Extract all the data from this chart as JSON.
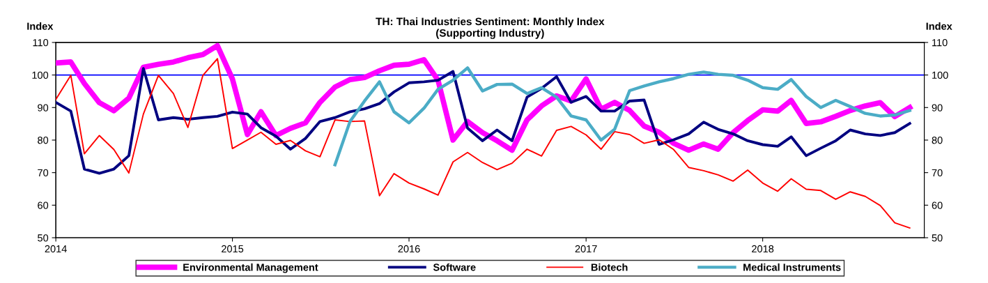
{
  "chart_data": {
    "type": "line",
    "title": "TH: Thai Industries Sentiment: Monthly Index\n(Supporting Industry)",
    "ylabel": "Index",
    "y2label": "Index",
    "x": [
      "2014-01",
      "2014-02",
      "2014-03",
      "2014-04",
      "2014-05",
      "2014-06",
      "2014-07",
      "2014-08",
      "2014-09",
      "2014-10",
      "2014-11",
      "2014-12",
      "2015-01",
      "2015-02",
      "2015-03",
      "2015-04",
      "2015-05",
      "2015-06",
      "2015-07",
      "2015-08",
      "2015-09",
      "2015-10",
      "2015-11",
      "2015-12",
      "2016-01",
      "2016-02",
      "2016-03",
      "2016-04",
      "2016-05",
      "2016-06",
      "2016-07",
      "2016-08",
      "2016-09",
      "2016-10",
      "2016-11",
      "2016-12",
      "2017-01",
      "2017-02",
      "2017-03",
      "2017-04",
      "2017-05",
      "2017-06",
      "2017-07",
      "2017-08",
      "2017-09",
      "2017-10",
      "2017-11",
      "2017-12",
      "2018-01",
      "2018-02",
      "2018-03",
      "2018-04",
      "2018-05",
      "2018-06",
      "2018-07",
      "2018-08",
      "2018-09",
      "2018-10",
      "2018-11"
    ],
    "xlim": [
      "2014-01-01",
      "2018-12-01"
    ],
    "xticks": [
      "2014",
      "2015",
      "2016",
      "2017",
      "2018"
    ],
    "ylim": [
      50,
      110
    ],
    "yticks": [
      50,
      60,
      70,
      80,
      90,
      100,
      110
    ],
    "y2lim": [
      50,
      110
    ],
    "y2ticks": [
      50,
      60,
      70,
      80,
      90,
      100,
      110
    ],
    "grid": false,
    "legend": "bottom",
    "marker": "none",
    "line_style": "solid",
    "ref_lines": [
      {
        "axis": "y",
        "value": 100,
        "color": "#0000ff",
        "line_style": "solid"
      }
    ],
    "series": [
      {
        "name": "Environmental Management",
        "color": "#ff00ff",
        "values": [
          103.7,
          104,
          97.4,
          91.5,
          89,
          92.9,
          102.4,
          103.3,
          104,
          105.3,
          106.3,
          109,
          98.8,
          81.7,
          88.7,
          81.4,
          83.6,
          85.3,
          91.6,
          96.3,
          98.6,
          99.2,
          101.3,
          103,
          103.3,
          104.7,
          98.4,
          80,
          85.7,
          82.3,
          79.8,
          76.9,
          86.2,
          90.5,
          93.6,
          92,
          98.8,
          89.5,
          91.6,
          89.1,
          84.3,
          82.4,
          79,
          76.9,
          78.8,
          77.2,
          82.3,
          86,
          89.3,
          88.9,
          92.2,
          85.1,
          85.6,
          87.3,
          89.1,
          90.5,
          91.5,
          87.2,
          90
        ]
      },
      {
        "name": "Software",
        "color": "#000080",
        "values": [
          91.6,
          88.9,
          71.1,
          69.8,
          71.1,
          75.2,
          102,
          86.2,
          86.9,
          86.4,
          86.9,
          87.3,
          88.6,
          88,
          83.8,
          81.2,
          77.2,
          80.5,
          85.7,
          86.9,
          88.7,
          89.6,
          91.2,
          94.8,
          97.6,
          97.9,
          98.4,
          101.1,
          83.7,
          79.8,
          83.1,
          79.8,
          93.2,
          95.9,
          99.5,
          91.6,
          93.4,
          88.9,
          88.9,
          92,
          92.3,
          78.7,
          80.1,
          81.9,
          85.5,
          83.3,
          81.9,
          79.8,
          78.6,
          78.1,
          81,
          75.2,
          77.5,
          79.8,
          83.1,
          81.9,
          81.4,
          82.3,
          85.1
        ]
      },
      {
        "name": "Biotech",
        "color": "#ff0000",
        "values": [
          92.5,
          99.9,
          75.8,
          81.4,
          77.1,
          69.9,
          88,
          99.9,
          94.3,
          83.9,
          99.9,
          105,
          77.4,
          80,
          82.4,
          78.7,
          79.9,
          76.7,
          74.9,
          86.2,
          85.7,
          85.9,
          62.9,
          69.7,
          66.8,
          65,
          63.1,
          73.3,
          76.2,
          73.1,
          70.9,
          72.9,
          77.2,
          75.1,
          83,
          84.2,
          81.6,
          77.2,
          82.6,
          81.7,
          79,
          80.1,
          77.1,
          71.6,
          70.6,
          69.3,
          67.4,
          70.8,
          66.8,
          64.3,
          68.1,
          64.9,
          64.5,
          61.8,
          64.1,
          62.7,
          59.9,
          54.6,
          53
        ]
      },
      {
        "name": "Medical Instruments",
        "color": "#4bacc6",
        "values": [
          null,
          null,
          null,
          null,
          null,
          null,
          null,
          null,
          null,
          null,
          null,
          null,
          null,
          null,
          null,
          null,
          null,
          null,
          null,
          72.4,
          85.7,
          92,
          97.9,
          88.7,
          85.3,
          89.8,
          95.6,
          98.4,
          102.2,
          95.1,
          97.1,
          97.2,
          94.3,
          96.1,
          93.2,
          87.4,
          86.2,
          80,
          83.3,
          95.2,
          96.6,
          97.9,
          98.9,
          100.2,
          100.9,
          100.2,
          99.9,
          98.4,
          96.1,
          95.6,
          98.6,
          93.4,
          90,
          92.2,
          90.3,
          88.2,
          87.4,
          87.7,
          89.1
        ]
      }
    ]
  }
}
